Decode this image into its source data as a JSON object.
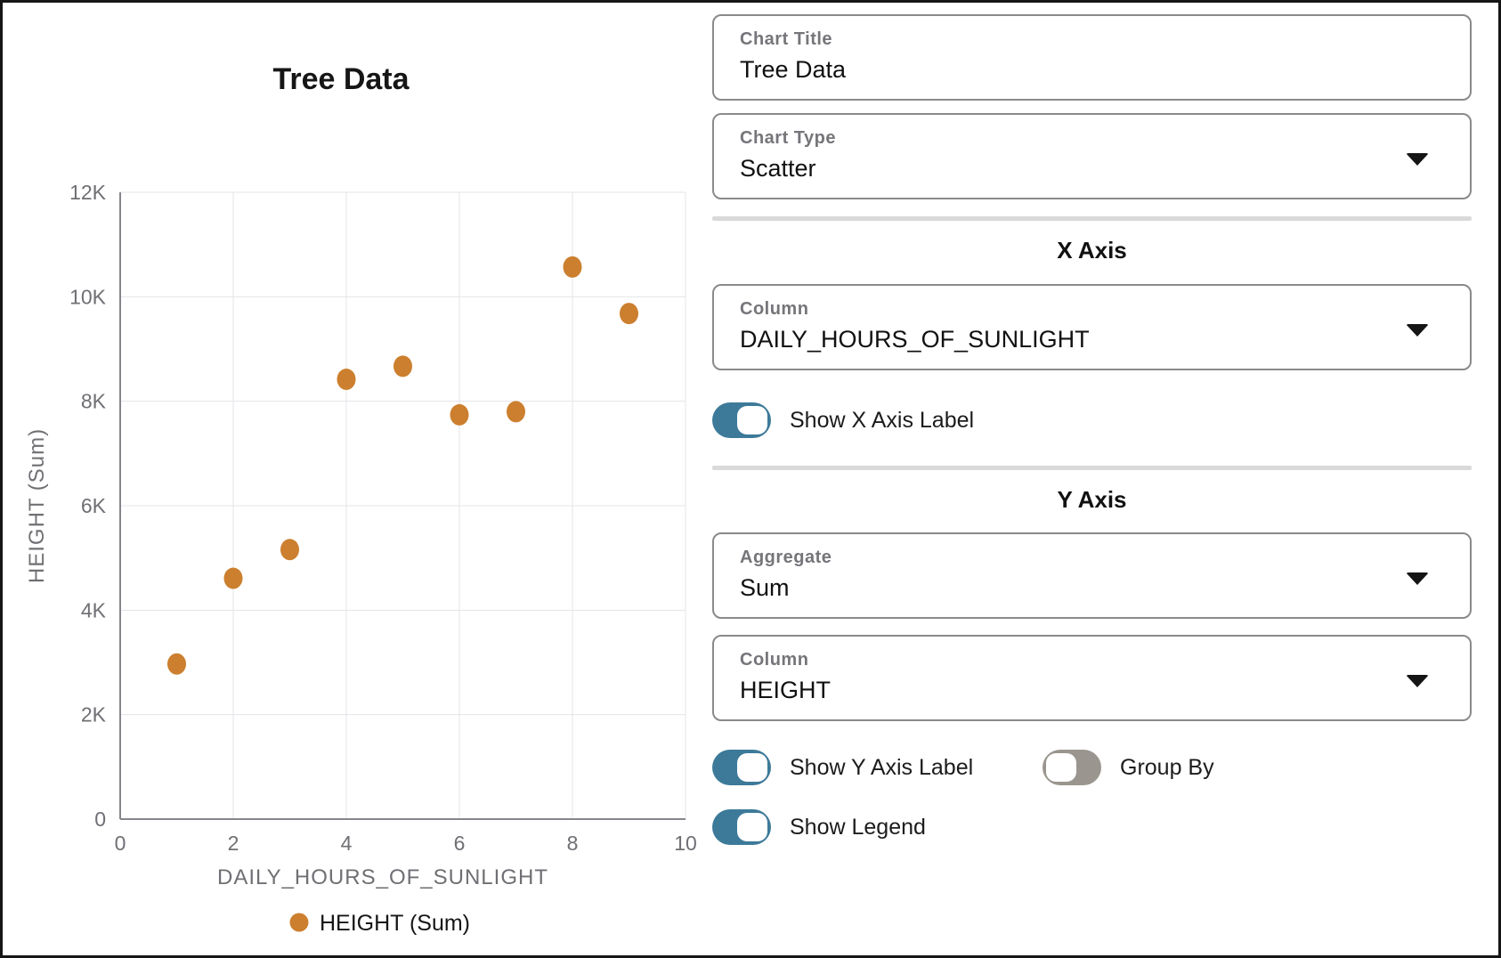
{
  "colors": {
    "point_orange": "#cc7f2e",
    "toggle_on": "#3d7a99",
    "toggle_off": "#9a968f",
    "gridline": "#e4e4e9",
    "axis_line": "#85858b"
  },
  "chart_data": {
    "type": "scatter",
    "title": "Tree Data",
    "xlabel": "DAILY_HOURS_OF_SUNLIGHT",
    "ylabel": "HEIGHT (Sum)",
    "series": [
      {
        "name": "HEIGHT (Sum)",
        "x": [
          1,
          2,
          3,
          4,
          5,
          6,
          7,
          8,
          9
        ],
        "y": [
          2970,
          4610,
          5160,
          8420,
          8670,
          7740,
          7800,
          10570,
          9680
        ]
      }
    ],
    "xlim": [
      0,
      10
    ],
    "ylim": [
      0,
      12000
    ],
    "xticks": {
      "values": [
        0,
        2,
        4,
        6,
        8,
        10
      ],
      "labels": [
        "0",
        "2",
        "4",
        "6",
        "8",
        "10"
      ]
    },
    "yticks": {
      "values": [
        0,
        2000,
        4000,
        6000,
        8000,
        10000,
        12000
      ],
      "labels": [
        "0",
        "2K",
        "4K",
        "6K",
        "8K",
        "10K",
        "12K"
      ]
    },
    "grid": true,
    "legend_position": "bottom",
    "legend": [
      "HEIGHT (Sum)"
    ],
    "point_color": "#cc7f2e"
  },
  "panel": {
    "chart_title": {
      "label": "Chart Title",
      "value": "Tree Data"
    },
    "chart_type": {
      "label": "Chart Type",
      "value": "Scatter"
    },
    "x_axis": {
      "heading": "X Axis",
      "column": {
        "label": "Column",
        "value": "DAILY_HOURS_OF_SUNLIGHT"
      },
      "show_label": "Show X Axis Label"
    },
    "y_axis": {
      "heading": "Y Axis",
      "aggregate": {
        "label": "Aggregate",
        "value": "Sum"
      },
      "column": {
        "label": "Column",
        "value": "HEIGHT"
      },
      "show_label": "Show Y Axis Label",
      "group_by": "Group By",
      "show_legend": "Show Legend"
    }
  },
  "toggles": {
    "show_x_axis_label": true,
    "show_y_axis_label": true,
    "group_by": false,
    "show_legend": true
  }
}
